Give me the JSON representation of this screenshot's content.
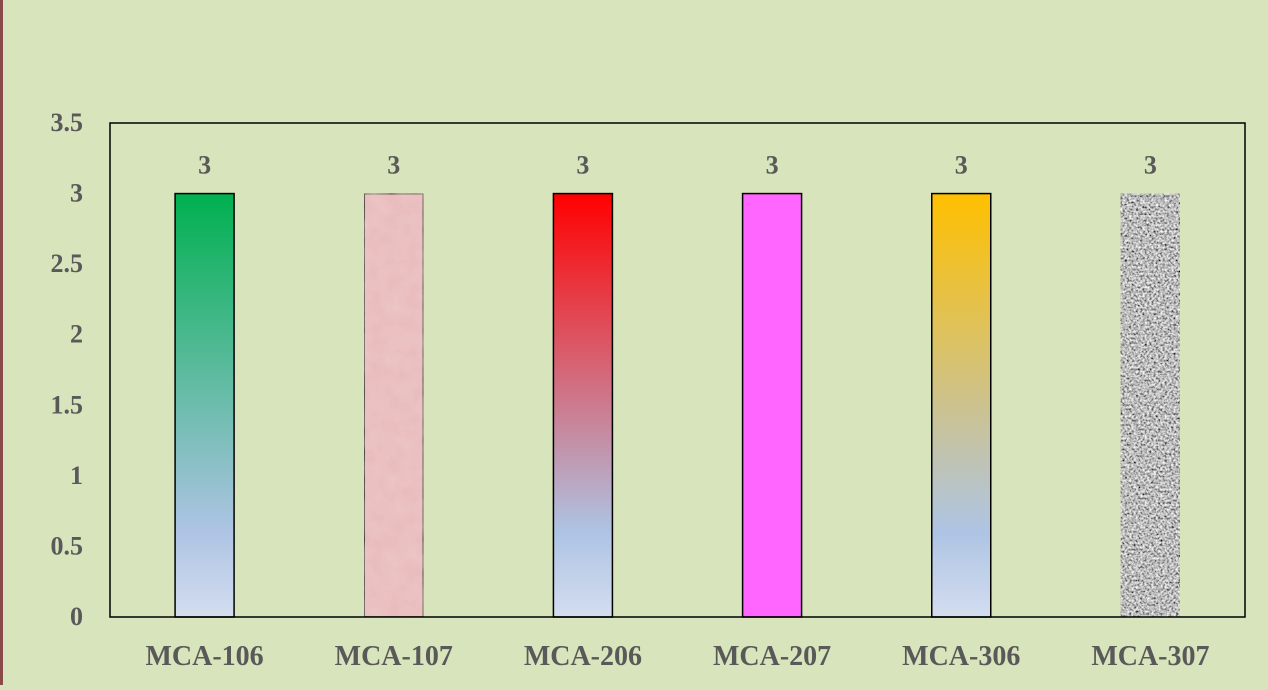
{
  "chart_data": {
    "type": "bar",
    "title": "",
    "xlabel": "",
    "ylabel": "",
    "categories": [
      "MCA-106",
      "MCA-107",
      "MCA-206",
      "MCA-207",
      "MCA-306",
      "MCA-307"
    ],
    "values": [
      3,
      3,
      3,
      3,
      3,
      3
    ],
    "data_labels": [
      "3",
      "3",
      "3",
      "3",
      "3",
      "3"
    ],
    "ylim": [
      0,
      3.5
    ],
    "yticks": [
      "0",
      "0.5",
      "1",
      "1.5",
      "2",
      "2.5",
      "3",
      "3.5"
    ],
    "grid": false,
    "legend": "none",
    "bar_styles": [
      {
        "fill": "gradient",
        "top": "#00b050",
        "bottom": "#d3ddef"
      },
      {
        "fill": "texture",
        "base": "#e8b9b9"
      },
      {
        "fill": "gradient",
        "top": "#ff0000",
        "bottom": "#d3ddef"
      },
      {
        "fill": "solid",
        "color": "#ff66ff"
      },
      {
        "fill": "gradient",
        "top": "#ffc000",
        "bottom": "#d3ddef"
      },
      {
        "fill": "texture",
        "base": "#8c8c8c"
      }
    ],
    "colors": {
      "background": "#d8e4bc",
      "axis": "#000000",
      "tick_text": "#595959"
    }
  }
}
